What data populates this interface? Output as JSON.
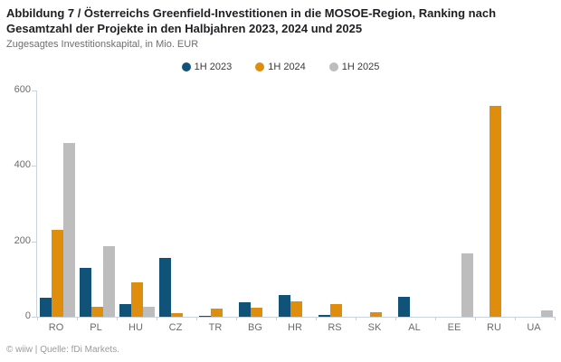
{
  "chart_data": {
    "type": "bar",
    "title_line1": "Abbildung 7 / Österreichs Greenfield-Investitionen in die MOSOE-Region, Ranking nach",
    "title_line2": "Gesamtzahl der Projekte in den Halbjahren 2023, 2024 und 2025",
    "subtitle": "Zugesagtes Investitionskapital, in Mio. EUR",
    "categories": [
      "RO",
      "PL",
      "HU",
      "CZ",
      "TR",
      "BG",
      "HR",
      "RS",
      "SK",
      "AL",
      "EE",
      "RU",
      "UA"
    ],
    "series": [
      {
        "name": "1H 2023",
        "color": "#115378",
        "values": [
          50,
          130,
          33,
          155,
          3,
          38,
          58,
          4,
          0,
          53,
          0,
          0,
          0
        ]
      },
      {
        "name": "1H 2024",
        "color": "#de8d0c",
        "values": [
          230,
          27,
          91,
          9,
          22,
          23,
          41,
          34,
          11,
          0,
          0,
          560,
          0
        ]
      },
      {
        "name": "1H 2025",
        "color": "#bdbdbd",
        "values": [
          460,
          187,
          27,
          0,
          0,
          0,
          0,
          0,
          0,
          0,
          168,
          0,
          17
        ]
      }
    ],
    "ylabel": "",
    "xlabel": "",
    "ylim": [
      0,
      600
    ],
    "yticks": [
      0,
      200,
      400,
      600
    ],
    "grid": false,
    "legend_position": "top-center",
    "footer": "© wiiw | Quelle: fDi Markets."
  }
}
